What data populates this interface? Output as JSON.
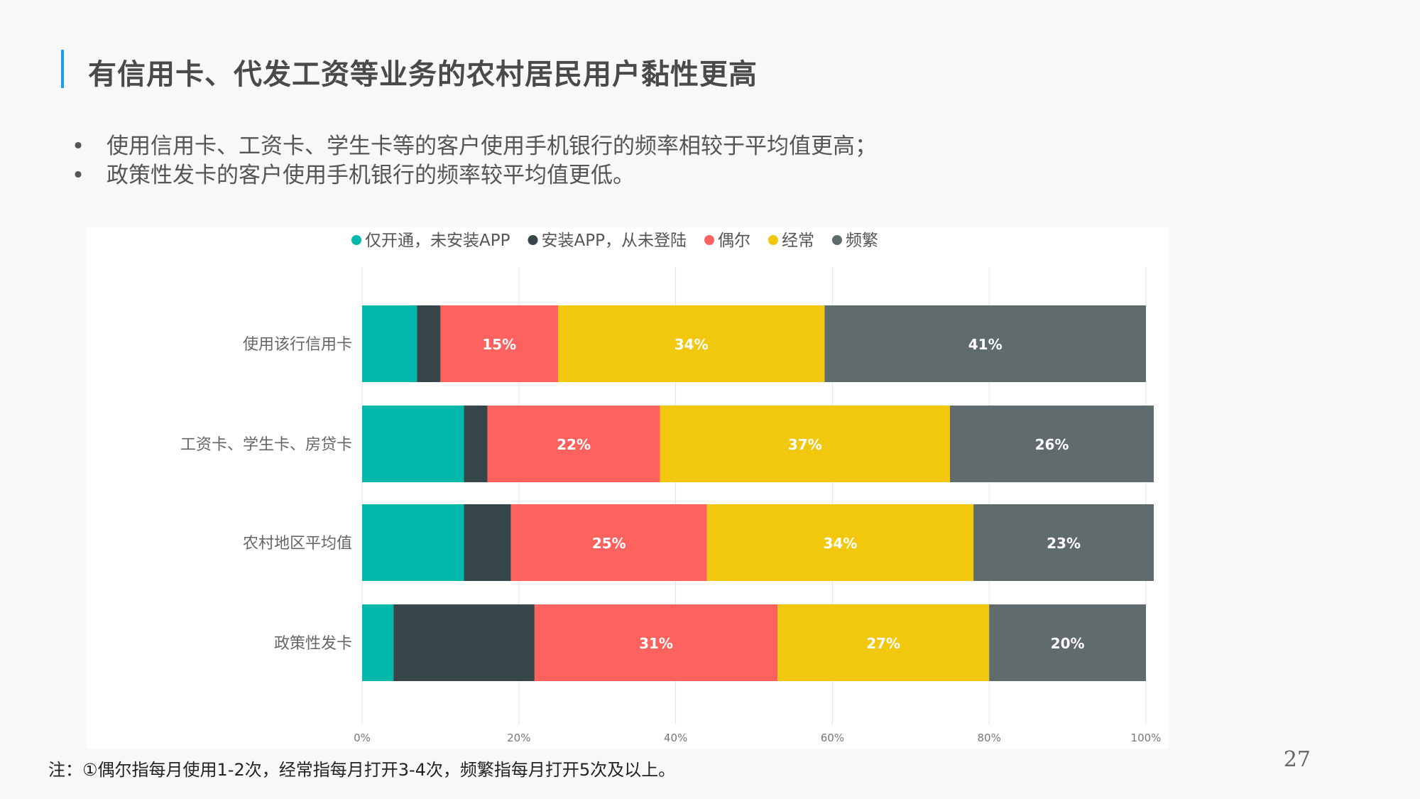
{
  "title": "有信用卡、代发工资等业务的农村居民用户黏性更高",
  "bullets": [
    "使用信用卡、工资卡、学生卡等的客户使用手机银行的频率相较于平均值更高；",
    "政策性发卡的客户使用手机银行的频率较平均值更低。"
  ],
  "bullet_symbol": "•",
  "note": "注：①偶尔指每月使用1-2次，经常指每月打开3-4次，频繁指每月打开5次及以上。",
  "page_number": "27",
  "chart_data": {
    "type": "bar",
    "orientation": "horizontal",
    "stacked": true,
    "title": "",
    "xlabel": "",
    "ylabel": "",
    "xlim": [
      0,
      100
    ],
    "x_ticks": [
      "0%",
      "20%",
      "40%",
      "60%",
      "80%",
      "100%"
    ],
    "grid": true,
    "legend_position": "top",
    "categories": [
      "使用该行信用卡",
      "工资卡、学生卡、房贷卡",
      "农村地区平均值",
      "政策性发卡"
    ],
    "series": [
      {
        "name": "仅开通，未安装APP",
        "color": "#01b8aa",
        "values": [
          7,
          13,
          13,
          4
        ],
        "labels": [
          "",
          "",
          "",
          ""
        ]
      },
      {
        "name": "安装APP，从未登陆",
        "color": "#374649",
        "values": [
          3,
          3,
          6,
          18
        ],
        "labels": [
          "",
          "",
          "",
          ""
        ]
      },
      {
        "name": "偶尔",
        "color": "#fd625e",
        "values": [
          15,
          22,
          25,
          31
        ],
        "labels": [
          "15%",
          "22%",
          "25%",
          "31%"
        ]
      },
      {
        "name": "经常",
        "color": "#f2c80f",
        "values": [
          34,
          37,
          34,
          27
        ],
        "labels": [
          "34%",
          "37%",
          "34%",
          "27%"
        ]
      },
      {
        "name": "频繁",
        "color": "#5f6b6d",
        "values": [
          41,
          26,
          23,
          20
        ],
        "labels": [
          "41%",
          "26%",
          "23%",
          "20%"
        ]
      }
    ]
  }
}
